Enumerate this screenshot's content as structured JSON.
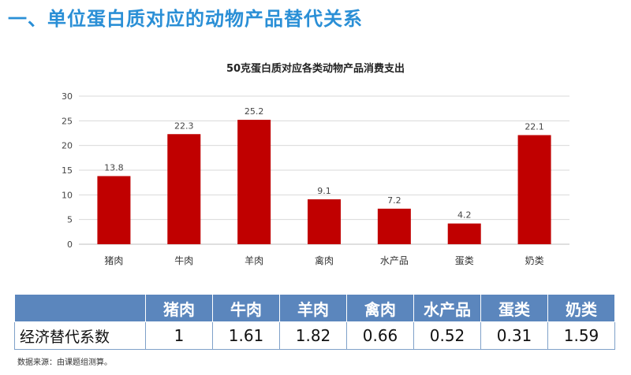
{
  "heading": "一、单位蛋白质对应的动物产品替代关系",
  "chart_data": {
    "type": "bar",
    "title": "50克蛋白质对应各类动物产品消费支出",
    "categories": [
      "猪肉",
      "牛肉",
      "羊肉",
      "禽肉",
      "水产品",
      "蛋类",
      "奶类"
    ],
    "values": [
      13.8,
      22.3,
      25.2,
      9.1,
      7.2,
      4.2,
      22.1
    ],
    "value_labels": [
      "13.8",
      "22.3",
      "25.2",
      "9.1",
      "7.2",
      "4.2",
      "22.1"
    ],
    "yticks": [
      "0",
      "5",
      "10",
      "15",
      "20",
      "25",
      "30"
    ],
    "ylim": [
      0,
      30
    ],
    "grid": true,
    "bar_color": "#c00000"
  },
  "table": {
    "headers": [
      "",
      "猪肉",
      "牛肉",
      "羊肉",
      "禽肉",
      "水产品",
      "蛋类",
      "奶类"
    ],
    "row_label": "经济替代系数",
    "values": [
      "1",
      "1.61",
      "1.82",
      "0.66",
      "0.52",
      "0.31",
      "1.59"
    ]
  },
  "source_note": "数据来源：由课题组测算。"
}
